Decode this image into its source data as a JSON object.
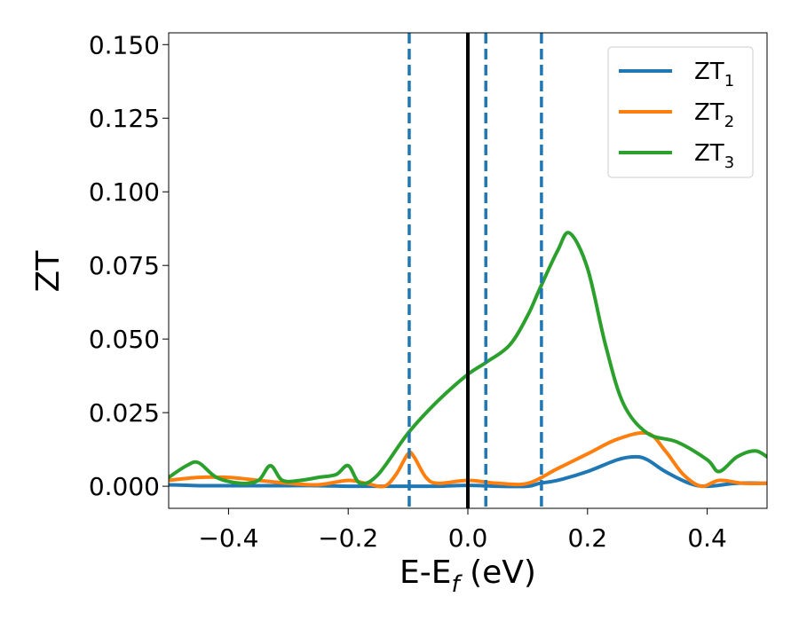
{
  "chart_data": {
    "type": "line",
    "xlabel": "E-E",
    "xlabel_sub": "f",
    "xlabel_unit": " (eV)",
    "ylabel": "ZT",
    "xlim": [
      -0.5,
      0.5
    ],
    "ylim": [
      -0.0075,
      0.154
    ],
    "xticks": [
      -0.4,
      -0.2,
      0.0,
      0.2,
      0.4
    ],
    "xtick_labels": [
      "−0.4",
      "−0.2",
      "0.0",
      "0.2",
      "0.4"
    ],
    "yticks": [
      0.0,
      0.025,
      0.05,
      0.075,
      0.1,
      0.125,
      0.15
    ],
    "ytick_labels": [
      "0.000",
      "0.025",
      "0.050",
      "0.075",
      "0.100",
      "0.125",
      "0.150"
    ],
    "grid": false,
    "legend_position": "top-right",
    "vlines": [
      {
        "x": 0.0,
        "color": "#000000",
        "style": "solid"
      },
      {
        "x": -0.098,
        "color": "#1f77b4",
        "style": "dashed"
      },
      {
        "x": 0.03,
        "color": "#1f77b4",
        "style": "dashed"
      },
      {
        "x": 0.123,
        "color": "#1f77b4",
        "style": "dashed"
      }
    ],
    "series": [
      {
        "name": "ZT",
        "name_sub": "1",
        "color": "#1f77b4",
        "x": [
          -0.5,
          -0.45,
          -0.4,
          -0.35,
          -0.3,
          -0.25,
          -0.2,
          -0.15,
          -0.1,
          -0.05,
          0.0,
          0.05,
          0.1,
          0.12,
          0.15,
          0.2,
          0.25,
          0.28,
          0.3,
          0.33,
          0.37,
          0.4,
          0.45,
          0.5
        ],
        "y": [
          0.0005,
          0.0002,
          0.0002,
          0.0002,
          0.0002,
          0.0002,
          0.0,
          0.0,
          0.0,
          0.0,
          0.0003,
          0.0,
          0.0,
          0.001,
          0.002,
          0.005,
          0.009,
          0.01,
          0.009,
          0.005,
          0.001,
          0.0,
          0.001,
          0.001
        ]
      },
      {
        "name": "ZT",
        "name_sub": "2",
        "color": "#ff7f0e",
        "x": [
          -0.5,
          -0.45,
          -0.4,
          -0.35,
          -0.3,
          -0.25,
          -0.2,
          -0.17,
          -0.14,
          -0.12,
          -0.1,
          -0.09,
          -0.07,
          -0.05,
          0.0,
          0.05,
          0.1,
          0.15,
          0.2,
          0.25,
          0.3,
          0.33,
          0.36,
          0.39,
          0.42,
          0.46,
          0.5
        ],
        "y": [
          0.002,
          0.003,
          0.003,
          0.002,
          0.001,
          0.0005,
          0.002,
          0.001,
          0.0,
          0.004,
          0.011,
          0.01,
          0.003,
          0.001,
          0.002,
          0.001,
          0.001,
          0.006,
          0.011,
          0.016,
          0.018,
          0.012,
          0.004,
          0.0,
          0.002,
          0.001,
          0.001
        ]
      },
      {
        "name": "ZT",
        "name_sub": "3",
        "color": "#2ca02c",
        "x": [
          -0.5,
          -0.47,
          -0.45,
          -0.42,
          -0.38,
          -0.35,
          -0.33,
          -0.31,
          -0.28,
          -0.25,
          -0.22,
          -0.2,
          -0.18,
          -0.15,
          -0.1,
          -0.05,
          0.0,
          0.03,
          0.07,
          0.1,
          0.12,
          0.15,
          0.17,
          0.2,
          0.23,
          0.26,
          0.3,
          0.35,
          0.4,
          0.42,
          0.45,
          0.48,
          0.5
        ],
        "y": [
          0.003,
          0.007,
          0.008,
          0.003,
          0.001,
          0.002,
          0.007,
          0.002,
          0.002,
          0.003,
          0.004,
          0.007,
          0.001,
          0.004,
          0.018,
          0.029,
          0.038,
          0.042,
          0.048,
          0.058,
          0.067,
          0.08,
          0.086,
          0.074,
          0.048,
          0.028,
          0.018,
          0.015,
          0.009,
          0.005,
          0.01,
          0.012,
          0.01
        ]
      }
    ]
  }
}
